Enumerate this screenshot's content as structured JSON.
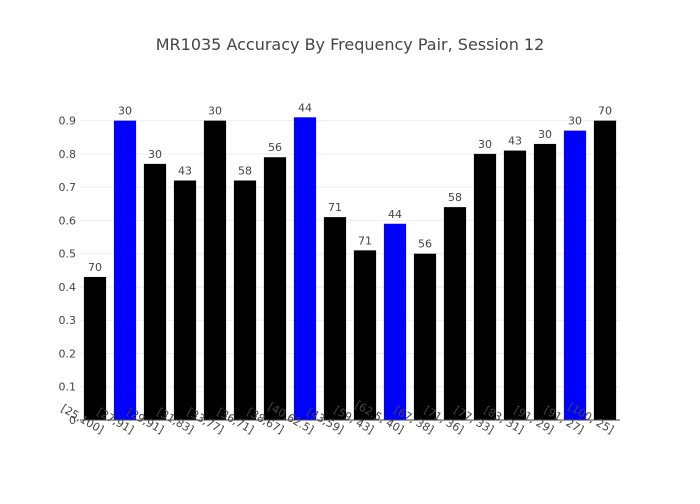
{
  "chart_data": {
    "type": "bar",
    "title": "MR1035 Accuracy By Frequency Pair, Session 12",
    "xlabel": "",
    "ylabel": "",
    "ylim": [
      0,
      0.9
    ],
    "yticks": [
      0,
      0.1,
      0.2,
      0.3,
      0.4,
      0.5,
      0.6,
      0.7,
      0.8,
      0.9
    ],
    "grid": true,
    "legend": "none",
    "categories": [
      "[25,100]",
      "[27,91]",
      "[29,91]",
      "[31,83]",
      "[33,77]",
      "[36,71]",
      "[38,67]",
      "[40,62.5]",
      "[43,59]",
      "[59, 43]",
      "[62.5, 40]",
      "[67, 38]",
      "[71, 36]",
      "[77, 33]",
      "[83, 31]",
      "[91, 29]",
      "[91, 27]",
      "[100, 25]"
    ],
    "values": [
      0.43,
      0.9,
      0.77,
      0.72,
      0.9,
      0.72,
      0.79,
      0.91,
      0.61,
      0.51,
      0.59,
      0.5,
      0.64,
      0.8,
      0.81,
      0.83,
      0.87,
      0.9
    ],
    "bar_labels": [
      "70",
      "30",
      "30",
      "43",
      "30",
      "58",
      "56",
      "44",
      "71",
      "71",
      "44",
      "56",
      "58",
      "30",
      "43",
      "30",
      "30",
      "70"
    ],
    "bar_colors": [
      "#000000",
      "#0000ff",
      "#000000",
      "#000000",
      "#000000",
      "#000000",
      "#000000",
      "#0000ff",
      "#000000",
      "#000000",
      "#0000ff",
      "#000000",
      "#000000",
      "#000000",
      "#000000",
      "#000000",
      "#0000ff",
      "#000000"
    ]
  }
}
